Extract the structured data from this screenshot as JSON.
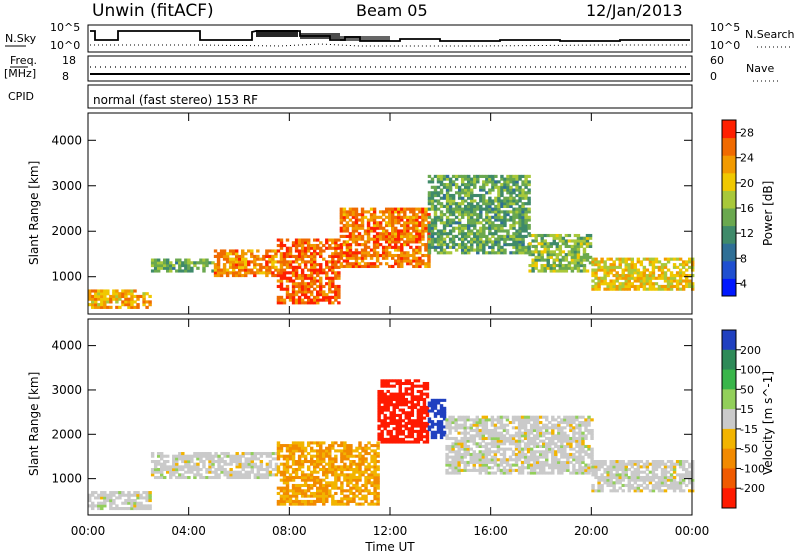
{
  "header": {
    "station": "Unwin (fitACF)",
    "beam": "Beam 05",
    "date": "12/Jan/2013"
  },
  "top_panels": {
    "nsky_label": "N.Sky",
    "nsky_ticks": [
      "10^5",
      "10^0"
    ],
    "nsearch_label": "N.Search",
    "nsearch_ticks": [
      "10^5",
      "10^0"
    ],
    "freq_label": "Freq.",
    "freq_unit": "[MHz]",
    "freq_ticks": [
      "18",
      "8"
    ],
    "nave_label": "Nave",
    "nave_ticks": [
      "60",
      "0"
    ],
    "cpid_label": "CPID",
    "cpid_text": "normal (fast stereo) 153 RF"
  },
  "chart_data": [
    {
      "type": "heatmap",
      "parameter": "Power",
      "xlabel": "Time UT",
      "ylabel": "Slant Range [km]",
      "x_ticks": [
        "00:00",
        "04:00",
        "08:00",
        "12:00",
        "16:00",
        "20:00",
        "00:00"
      ],
      "x_range_hours": [
        0,
        24
      ],
      "y_ticks": [
        1000,
        2000,
        3000,
        4000
      ],
      "ylim": [
        180,
        4600
      ],
      "colorbar": {
        "label": "Power [dB]",
        "ticks": [
          4,
          8,
          12,
          16,
          20,
          24,
          28
        ],
        "colors": [
          "#0018ff",
          "#1f4fd0",
          "#2f6f96",
          "#3f8a6a",
          "#6aa84f",
          "#a8c83a",
          "#f0c800",
          "#f29a00",
          "#f06a00",
          "#ff2000"
        ]
      },
      "bands": [
        {
          "start_h": 0.0,
          "end_h": 2.5,
          "range_lo_km": 300,
          "range_hi_km": 700,
          "level_db": 22
        },
        {
          "start_h": 2.5,
          "end_h": 5.0,
          "range_lo_km": 1100,
          "range_hi_km": 1400,
          "level_db": 14
        },
        {
          "start_h": 5.0,
          "end_h": 7.5,
          "range_lo_km": 1000,
          "range_hi_km": 1600,
          "level_db": 24
        },
        {
          "start_h": 7.5,
          "end_h": 10.0,
          "range_lo_km": 400,
          "range_hi_km": 1800,
          "level_db": 26
        },
        {
          "start_h": 10.0,
          "end_h": 13.5,
          "range_lo_km": 1200,
          "range_hi_km": 2500,
          "level_db": 25
        },
        {
          "start_h": 13.5,
          "end_h": 17.5,
          "range_lo_km": 1500,
          "range_hi_km": 3200,
          "level_db": 14
        },
        {
          "start_h": 17.5,
          "end_h": 20.0,
          "range_lo_km": 1100,
          "range_hi_km": 1900,
          "level_db": 16
        },
        {
          "start_h": 20.0,
          "end_h": 24.0,
          "range_lo_km": 700,
          "range_hi_km": 1400,
          "level_db": 20
        }
      ]
    },
    {
      "type": "heatmap",
      "parameter": "Velocity",
      "xlabel": "Time UT",
      "ylabel": "Slant Range [km]",
      "x_ticks": [
        "00:00",
        "04:00",
        "08:00",
        "12:00",
        "16:00",
        "20:00",
        "00:00"
      ],
      "x_range_hours": [
        0,
        24
      ],
      "y_ticks": [
        1000,
        2000,
        3000,
        4000
      ],
      "ylim": [
        180,
        4600
      ],
      "colorbar": {
        "label": "Velocity [m s^-1]",
        "ticks": [
          200,
          100,
          50,
          15,
          -15,
          -50,
          -100,
          -200
        ],
        "colors": [
          "#2040c0",
          "#2e8a58",
          "#39b54a",
          "#92cf5a",
          "#cacaca",
          "#f2b400",
          "#f28a00",
          "#f05a00",
          "#ff1a00"
        ]
      },
      "bands": [
        {
          "start_h": 0.0,
          "end_h": 2.5,
          "range_lo_km": 300,
          "range_hi_km": 700,
          "velocity_ms": 0
        },
        {
          "start_h": 2.5,
          "end_h": 7.5,
          "range_lo_km": 1000,
          "range_hi_km": 1600,
          "velocity_ms": 0
        },
        {
          "start_h": 7.5,
          "end_h": 11.5,
          "range_lo_km": 400,
          "range_hi_km": 1800,
          "velocity_ms": -30
        },
        {
          "start_h": 11.5,
          "end_h": 13.5,
          "range_lo_km": 1800,
          "range_hi_km": 3200,
          "velocity_ms": -200
        },
        {
          "start_h": 13.5,
          "end_h": 14.2,
          "range_lo_km": 1900,
          "range_hi_km": 2800,
          "velocity_ms": 200
        },
        {
          "start_h": 14.2,
          "end_h": 20.0,
          "range_lo_km": 1100,
          "range_hi_km": 2400,
          "velocity_ms": 0
        },
        {
          "start_h": 20.0,
          "end_h": 24.0,
          "range_lo_km": 700,
          "range_hi_km": 1400,
          "velocity_ms": 0
        }
      ]
    }
  ]
}
